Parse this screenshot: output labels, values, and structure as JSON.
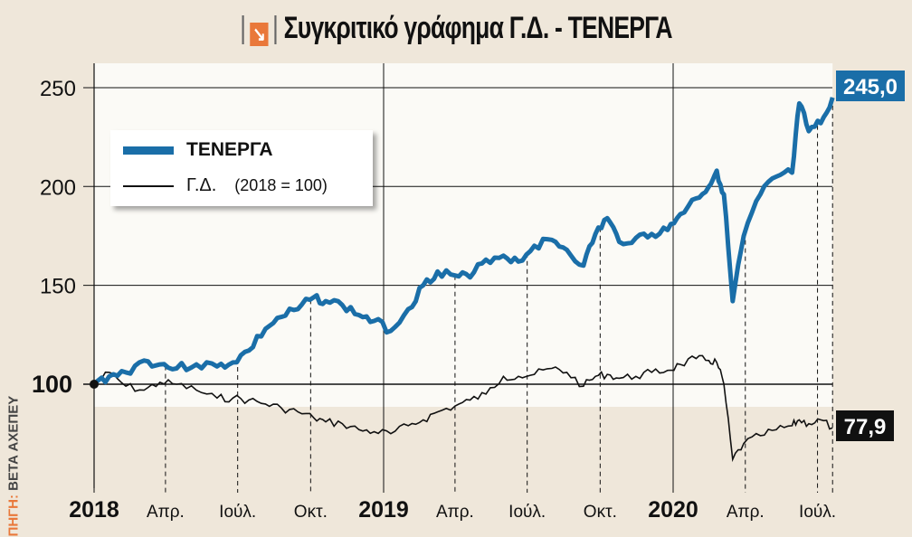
{
  "title": "Συγκριτικό γράφημα Γ.Δ. - ΤΕΝΕΡΓΑ",
  "title_icon": "arrow-down-right-icon",
  "source": {
    "label": "ΠΗΓΗ:",
    "value": "BETA ΑΧΕΠΕΥ"
  },
  "colors": {
    "tenerga": "#1a6ea8",
    "gd": "#111111",
    "source_label": "#e9783a"
  },
  "legend": {
    "series1": "ΤΕΝΕΡΓΑ",
    "series2": "Γ.Δ.",
    "series2_note": "(2018 = 100)"
  },
  "chart_data": {
    "type": "line",
    "title": "Συγκριτικό γράφημα Γ.Δ. - ΤΕΝΕΡΓΑ",
    "ylim": [
      50,
      265
    ],
    "yticks": [
      100,
      150,
      200,
      250
    ],
    "ytick_labels": [
      "100",
      "150",
      "200",
      "250"
    ],
    "xlim": [
      "2018-01-01",
      "2020-09-15"
    ],
    "xticks": [
      {
        "date": "2018-01-01",
        "label": "2018",
        "major": true
      },
      {
        "date": "2018-04-01",
        "label": "Απρ.",
        "major": false
      },
      {
        "date": "2018-07-01",
        "label": "Ιούλ.",
        "major": false
      },
      {
        "date": "2018-10-01",
        "label": "Οκτ.",
        "major": false
      },
      {
        "date": "2019-01-01",
        "label": "2019",
        "major": true
      },
      {
        "date": "2019-04-01",
        "label": "Απρ.",
        "major": false
      },
      {
        "date": "2019-07-01",
        "label": "Ιούλ.",
        "major": false
      },
      {
        "date": "2019-10-01",
        "label": "Οκτ.",
        "major": false
      },
      {
        "date": "2020-01-01",
        "label": "2020",
        "major": true
      },
      {
        "date": "2020-04-01",
        "label": "Απρ.",
        "major": false
      },
      {
        "date": "2020-07-01",
        "label": "Ιούλ.",
        "major": false
      }
    ],
    "grid": true,
    "legend_position": "top-left",
    "series": [
      {
        "name": "ΤΕΝΕΡΓΑ",
        "color": "#1a6ea8",
        "last_label": "245,0",
        "x": [
          "2018-01-01",
          "2018-01-20",
          "2018-02-10",
          "2018-03-05",
          "2018-03-25",
          "2018-04-15",
          "2018-05-10",
          "2018-06-05",
          "2018-06-25",
          "2018-07-15",
          "2018-08-05",
          "2018-08-25",
          "2018-09-15",
          "2018-10-05",
          "2018-10-20",
          "2018-11-10",
          "2018-12-01",
          "2018-12-20",
          "2019-01-10",
          "2019-02-01",
          "2019-02-20",
          "2019-03-10",
          "2019-04-01",
          "2019-04-20",
          "2019-05-10",
          "2019-06-01",
          "2019-06-20",
          "2019-07-10",
          "2019-08-01",
          "2019-08-20",
          "2019-09-10",
          "2019-09-25",
          "2019-10-10",
          "2019-10-25",
          "2019-11-15",
          "2019-12-05",
          "2019-12-25",
          "2020-01-10",
          "2020-01-30",
          "2020-02-15",
          "2020-02-25",
          "2020-03-05",
          "2020-03-16",
          "2020-03-30",
          "2020-04-20",
          "2020-05-10",
          "2020-05-30",
          "2020-06-08",
          "2020-06-20",
          "2020-07-05",
          "2020-07-20"
        ],
        "values": [
          100,
          104,
          106,
          112,
          110,
          108,
          110,
          109,
          111,
          117,
          128,
          134,
          138,
          144,
          142,
          140,
          135,
          132,
          127,
          138,
          150,
          157,
          155,
          154,
          163,
          165,
          162,
          170,
          173,
          168,
          160,
          176,
          184,
          172,
          174,
          176,
          178,
          186,
          194,
          200,
          208,
          196,
          142,
          175,
          196,
          205,
          207,
          242,
          228,
          232,
          245
        ]
      },
      {
        "name": "Γ.Δ.",
        "color": "#111111",
        "last_label": "77,9",
        "x": [
          "2018-01-01",
          "2018-01-20",
          "2018-02-10",
          "2018-03-05",
          "2018-03-25",
          "2018-04-15",
          "2018-05-10",
          "2018-06-05",
          "2018-06-25",
          "2018-07-15",
          "2018-08-05",
          "2018-08-25",
          "2018-09-15",
          "2018-10-05",
          "2018-10-20",
          "2018-11-10",
          "2018-12-01",
          "2018-12-20",
          "2019-01-10",
          "2019-02-01",
          "2019-02-20",
          "2019-03-10",
          "2019-04-01",
          "2019-04-20",
          "2019-05-10",
          "2019-06-01",
          "2019-06-20",
          "2019-07-10",
          "2019-08-01",
          "2019-08-20",
          "2019-09-10",
          "2019-09-25",
          "2019-10-10",
          "2019-10-25",
          "2019-11-15",
          "2019-12-05",
          "2019-12-25",
          "2020-01-10",
          "2020-01-30",
          "2020-02-15",
          "2020-02-25",
          "2020-03-05",
          "2020-03-16",
          "2020-03-30",
          "2020-04-20",
          "2020-05-10",
          "2020-05-30",
          "2020-06-08",
          "2020-06-20",
          "2020-07-05",
          "2020-07-20"
        ],
        "values": [
          100,
          106,
          99,
          97,
          101,
          100,
          97,
          93,
          93,
          92,
          90,
          88,
          86,
          83,
          81,
          80,
          77,
          76,
          75,
          79,
          82,
          86,
          89,
          92,
          95,
          104,
          104,
          105,
          108,
          106,
          99,
          104,
          105,
          103,
          104,
          106,
          107,
          110,
          113,
          112,
          111,
          100,
          62,
          70,
          74,
          77,
          79,
          82,
          80,
          82,
          77.9
        ]
      }
    ]
  }
}
